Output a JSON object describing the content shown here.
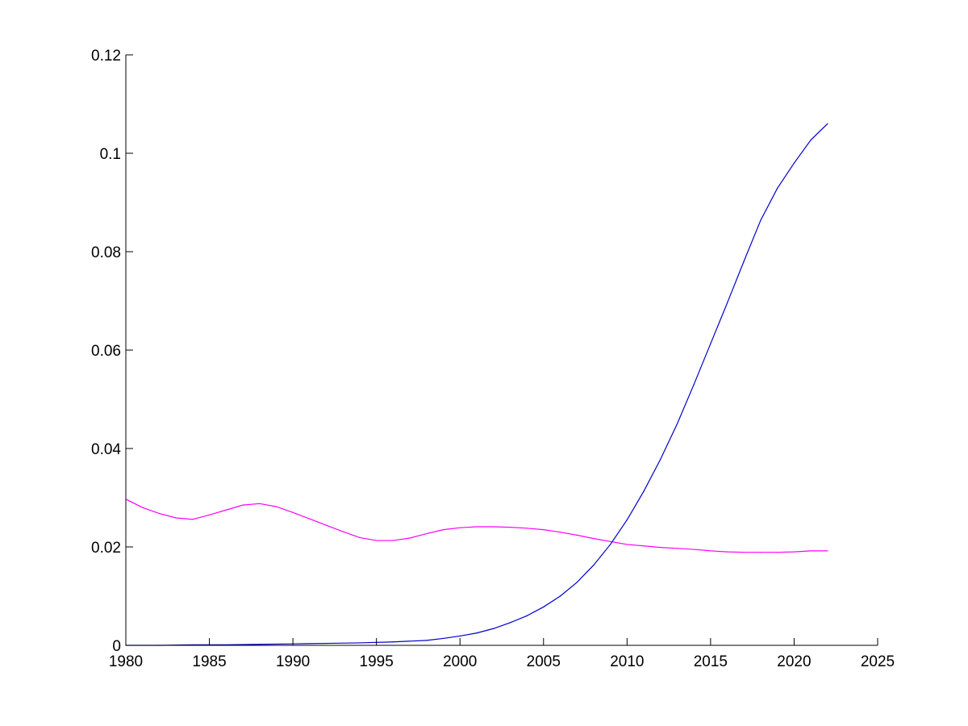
{
  "chart_data": {
    "type": "line",
    "title": "",
    "xlabel": "",
    "ylabel": "",
    "xlim": [
      1980,
      2025
    ],
    "ylim": [
      0,
      0.12
    ],
    "grid": false,
    "legend": "none",
    "x_ticks": [
      1980,
      1985,
      1990,
      1995,
      2000,
      2005,
      2010,
      2015,
      2020,
      2025
    ],
    "y_ticks": [
      0,
      0.02,
      0.04,
      0.06,
      0.08,
      0.1,
      0.12
    ],
    "x_tick_labels": [
      "1980",
      "1985",
      "1990",
      "1995",
      "2000",
      "2005",
      "2010",
      "2015",
      "2020",
      "2025"
    ],
    "y_tick_labels": [
      "0",
      "0.02",
      "0.04",
      "0.06",
      "0.08",
      "0.1",
      "0.12"
    ],
    "series": [
      {
        "color": "#ff00ff",
        "x": [
          1980,
          1981,
          1982,
          1983,
          1984,
          1985,
          1986,
          1987,
          1988,
          1989,
          1990,
          1991,
          1992,
          1993,
          1994,
          1995,
          1996,
          1997,
          1998,
          1999,
          2000,
          2001,
          2002,
          2003,
          2004,
          2005,
          2006,
          2007,
          2008,
          2009,
          2010,
          2011,
          2012,
          2013,
          2014,
          2015,
          2016,
          2017,
          2018,
          2019,
          2020,
          2021,
          2022
        ],
        "y": [
          0.0297,
          0.028,
          0.0268,
          0.0259,
          0.0256,
          0.0265,
          0.0275,
          0.0285,
          0.0288,
          0.0282,
          0.027,
          0.0257,
          0.0244,
          0.0231,
          0.0219,
          0.0213,
          0.0213,
          0.0218,
          0.0227,
          0.0235,
          0.0239,
          0.0241,
          0.0241,
          0.024,
          0.0238,
          0.0235,
          0.023,
          0.0224,
          0.0217,
          0.0211,
          0.0205,
          0.0202,
          0.0199,
          0.0197,
          0.0195,
          0.0192,
          0.019,
          0.0189,
          0.0189,
          0.0189,
          0.019,
          0.0192,
          0.0192
        ]
      },
      {
        "color": "#0000cc",
        "x": [
          1980,
          1982,
          1984,
          1986,
          1988,
          1990,
          1992,
          1994,
          1996,
          1998,
          1999,
          2000,
          2001,
          2002,
          2003,
          2004,
          2005,
          2006,
          2007,
          2008,
          2009,
          2010,
          2011,
          2012,
          2013,
          2014,
          2015,
          2016,
          2017,
          2018,
          2019,
          2020,
          2021,
          2022
        ],
        "y": [
          0.0,
          0.0,
          0.0001,
          0.0001,
          0.0002,
          0.0003,
          0.0004,
          0.0005,
          0.0007,
          0.001,
          0.0014,
          0.0019,
          0.0025,
          0.0034,
          0.0046,
          0.006,
          0.0078,
          0.01,
          0.0128,
          0.0163,
          0.0205,
          0.0255,
          0.0313,
          0.0378,
          0.045,
          0.053,
          0.0613,
          0.0696,
          0.0781,
          0.0864,
          0.0929,
          0.098,
          0.1027,
          0.106
        ]
      }
    ]
  }
}
